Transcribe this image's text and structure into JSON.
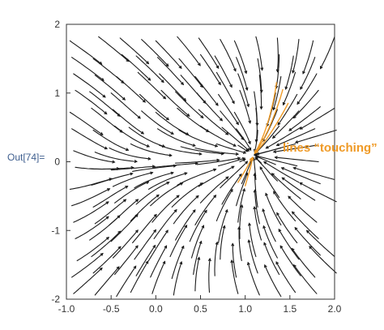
{
  "notebook": {
    "output_label": "Out[74]="
  },
  "annotation": {
    "text": "lines “touching”",
    "color": "#ef9a26"
  },
  "colors": {
    "streamline": "#1a1a1a",
    "highlight": "#ef9a26",
    "frame": "#333333",
    "label": "#3f5f8f"
  },
  "chart_data": {
    "type": "streamplot",
    "title": "",
    "xlabel": "",
    "ylabel": "",
    "xlim": [
      -1.0,
      2.0
    ],
    "ylim": [
      -2.0,
      2.0
    ],
    "x_ticks": [
      "-1.0",
      "-0.5",
      "0.0",
      "0.5",
      "1.0",
      "1.5",
      "2.0"
    ],
    "y_ticks": [
      "-2",
      "-1",
      "0",
      "1",
      "2"
    ],
    "highlighted_point": [
      1.05,
      0.1
    ],
    "highlighted_region": "streamlines converging near (1.05, 0.1) in orange"
  }
}
